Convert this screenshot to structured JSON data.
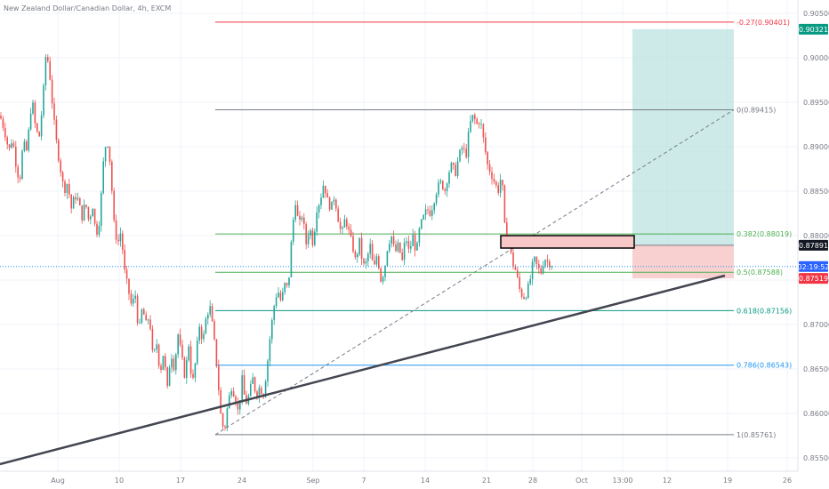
{
  "header": {
    "symbol_title": "New Zealand Dollar/Canadian Dollar, 4h, EXCM"
  },
  "colors": {
    "bull": "#26a69a",
    "bear": "#ef5350",
    "fib_0": "#787b86",
    "fib_neg027": "#f23645",
    "fib_0382": "#4caf50",
    "fib_05": "#4caf50",
    "fib_0618": "#089981",
    "fib_0786": "#2196f3",
    "fib_1": "#787b86",
    "target_zone": "#b2dfdb",
    "stop_zone": "#f8c8c8",
    "trendline": "#434651",
    "order_block_fill": "#f8c8c8",
    "order_block_border": "#000000",
    "price_line": "#2196f3"
  },
  "chart_data": {
    "type": "candlestick",
    "title": "New Zealand Dollar/Canadian Dollar, 4h, EXCM",
    "ylim": [
      0.8535,
      0.9065
    ],
    "y_ticks": [
      "0.90500",
      "0.90000",
      "0.89500",
      "0.89000",
      "0.88500",
      "0.88000",
      "0.87500",
      "0.87000",
      "0.86500",
      "0.86000",
      "0.85500"
    ],
    "x_ticks": [
      "Aug",
      "10",
      "17",
      "24",
      "Sep",
      "7",
      "14",
      "21",
      "28",
      "Oct",
      "13:00",
      "12",
      "19",
      "26"
    ],
    "fib_levels": [
      {
        "ratio": -0.27,
        "price": 0.90401,
        "label": "-0.27(0.90401)",
        "color_key": "fib_neg027"
      },
      {
        "ratio": 0,
        "price": 0.89415,
        "label": "0(0.89415)",
        "color_key": "fib_0"
      },
      {
        "ratio": 0.382,
        "price": 0.88019,
        "label": "0.382(0.88019)",
        "color_key": "fib_0382"
      },
      {
        "ratio": 0.5,
        "price": 0.87588,
        "label": "0.5(0.87588)",
        "color_key": "fib_05"
      },
      {
        "ratio": 0.618,
        "price": 0.87156,
        "label": "0.618(0.87156)",
        "color_key": "fib_0618"
      },
      {
        "ratio": 0.786,
        "price": 0.86543,
        "label": "0.786(0.86543)",
        "color_key": "fib_0786"
      },
      {
        "ratio": 1,
        "price": 0.85761,
        "label": "1(0.85761)",
        "color_key": "fib_1"
      }
    ],
    "price_badges": [
      {
        "text": "0.90321",
        "price": 0.90321,
        "bg": "#089981",
        "fg": "#ffffff"
      },
      {
        "text": "0.87891",
        "price": 0.87891,
        "bg": "#131722",
        "fg": "#ffffff"
      },
      {
        "text": "02:19:52",
        "price": 0.87652,
        "bg": "#2962ff",
        "fg": "#ffffff"
      },
      {
        "text": "0.87519",
        "price": 0.87519,
        "bg": "#f23645",
        "fg": "#ffffff"
      }
    ],
    "current_price": 0.87652,
    "position": {
      "entry": 0.87891,
      "target": 0.90321,
      "stop": 0.87519
    },
    "order_block": {
      "top": 0.88,
      "bottom": 0.8786
    },
    "series": [
      {
        "name": "",
        "anchors": [
          [
            0,
            0.8935
          ],
          [
            5,
            0.8918
          ],
          [
            10,
            0.8895
          ],
          [
            14,
            0.891
          ],
          [
            18,
            0.888
          ],
          [
            22,
            0.886
          ],
          [
            26,
            0.8905
          ],
          [
            30,
            0.8895
          ],
          [
            36,
            0.8955
          ],
          [
            40,
            0.892
          ],
          [
            44,
            0.891
          ],
          [
            48,
            0.895
          ],
          [
            52,
            0.901
          ],
          [
            56,
            0.898
          ],
          [
            60,
            0.8935
          ],
          [
            64,
            0.89
          ],
          [
            68,
            0.8875
          ],
          [
            72,
            0.885
          ],
          [
            76,
            0.886
          ],
          [
            80,
            0.883
          ],
          [
            84,
            0.8845
          ],
          [
            88,
            0.884
          ],
          [
            92,
            0.882
          ],
          [
            96,
            0.8838
          ],
          [
            100,
            0.8815
          ],
          [
            104,
            0.8835
          ],
          [
            108,
            0.88
          ],
          [
            112,
            0.8818
          ],
          [
            116,
            0.888
          ],
          [
            120,
            0.8912
          ],
          [
            124,
            0.888
          ],
          [
            128,
            0.8815
          ],
          [
            132,
            0.879
          ],
          [
            136,
            0.8805
          ],
          [
            140,
            0.876
          ],
          [
            144,
            0.874
          ],
          [
            148,
            0.872
          ],
          [
            152,
            0.8735
          ],
          [
            156,
            0.869
          ],
          [
            160,
            0.872
          ],
          [
            164,
            0.87
          ],
          [
            168,
            0.871
          ],
          [
            172,
            0.866
          ],
          [
            176,
            0.868
          ],
          [
            180,
            0.8645
          ],
          [
            184,
            0.867
          ],
          [
            188,
            0.8625
          ],
          [
            192,
            0.867
          ],
          [
            196,
            0.865
          ],
          [
            200,
            0.869
          ],
          [
            204,
            0.8665
          ],
          [
            208,
            0.864
          ],
          [
            212,
            0.868
          ],
          [
            216,
            0.863
          ],
          [
            220,
            0.866
          ],
          [
            224,
            0.87
          ],
          [
            228,
            0.868
          ],
          [
            232,
            0.871
          ],
          [
            236,
            0.872
          ],
          [
            240,
            0.869
          ],
          [
            244,
            0.865
          ],
          [
            248,
            0.86
          ],
          [
            252,
            0.8578
          ],
          [
            256,
            0.861
          ],
          [
            260,
            0.863
          ],
          [
            264,
            0.862
          ],
          [
            268,
            0.86
          ],
          [
            272,
            0.864
          ],
          [
            276,
            0.861
          ],
          [
            280,
            0.862
          ],
          [
            284,
            0.864
          ],
          [
            288,
            0.862
          ],
          [
            292,
            0.863
          ],
          [
            296,
            0.862
          ],
          [
            300,
            0.865
          ],
          [
            304,
            0.869
          ],
          [
            308,
            0.872
          ],
          [
            312,
            0.874
          ],
          [
            316,
            0.8725
          ],
          [
            320,
            0.8745
          ],
          [
            324,
            0.874
          ],
          [
            328,
            0.88
          ],
          [
            332,
            0.884
          ],
          [
            336,
            0.881
          ],
          [
            340,
            0.8825
          ],
          [
            344,
            0.879
          ],
          [
            348,
            0.881
          ],
          [
            352,
            0.879
          ],
          [
            356,
            0.883
          ],
          [
            360,
            0.884
          ],
          [
            364,
            0.886
          ],
          [
            368,
            0.884
          ],
          [
            372,
            0.883
          ],
          [
            376,
            0.8845
          ],
          [
            380,
            0.882
          ],
          [
            384,
            0.88
          ],
          [
            388,
            0.882
          ],
          [
            392,
            0.8805
          ],
          [
            396,
            0.879
          ],
          [
            400,
            0.877
          ],
          [
            404,
            0.8795
          ],
          [
            408,
            0.8765
          ],
          [
            412,
            0.877
          ],
          [
            416,
            0.879
          ],
          [
            420,
            0.876
          ],
          [
            424,
            0.878
          ],
          [
            428,
            0.875
          ],
          [
            432,
            0.876
          ],
          [
            436,
            0.879
          ],
          [
            440,
            0.88
          ],
          [
            444,
            0.878
          ],
          [
            448,
            0.879
          ],
          [
            452,
            0.877
          ],
          [
            456,
            0.88
          ],
          [
            460,
            0.878
          ],
          [
            464,
            0.88
          ],
          [
            468,
            0.878
          ],
          [
            472,
            0.881
          ],
          [
            476,
            0.882
          ],
          [
            480,
            0.883
          ],
          [
            484,
            0.8825
          ],
          [
            488,
            0.884
          ],
          [
            492,
            0.8855
          ],
          [
            496,
            0.886
          ],
          [
            500,
            0.885
          ],
          [
            504,
            0.887
          ],
          [
            508,
            0.888
          ],
          [
            512,
            0.887
          ],
          [
            516,
            0.889
          ],
          [
            520,
            0.89
          ],
          [
            524,
            0.889
          ],
          [
            528,
            0.8925
          ],
          [
            532,
            0.8935
          ],
          [
            536,
            0.8925
          ],
          [
            540,
            0.893
          ],
          [
            544,
            0.8905
          ],
          [
            548,
            0.888
          ],
          [
            552,
            0.887
          ],
          [
            556,
            0.886
          ],
          [
            560,
            0.885
          ],
          [
            564,
            0.887
          ],
          [
            568,
            0.88
          ],
          [
            572,
            0.8795
          ],
          [
            576,
            0.877
          ],
          [
            580,
            0.876
          ],
          [
            584,
            0.874
          ],
          [
            588,
            0.873
          ],
          [
            592,
            0.8735
          ],
          [
            596,
            0.875
          ],
          [
            600,
            0.8775
          ],
          [
            604,
            0.8765
          ],
          [
            608,
            0.8758
          ],
          [
            612,
            0.8775
          ],
          [
            616,
            0.877
          ],
          [
            620,
            0.8768
          ],
          [
            622,
            0.8765
          ]
        ]
      }
    ]
  }
}
